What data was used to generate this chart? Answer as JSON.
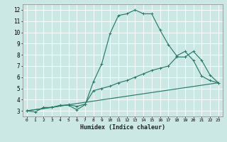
{
  "xlabel": "Humidex (Indice chaleur)",
  "ylabel": "",
  "bg_color": "#cce8e4",
  "grid_color": "#b8d8d4",
  "line_color": "#2a7a6a",
  "xlim": [
    -0.5,
    23.5
  ],
  "ylim": [
    2.5,
    12.5
  ],
  "xtick_labels": [
    "0",
    "1",
    "2",
    "3",
    "4",
    "5",
    "6",
    "7",
    "8",
    "9",
    "10",
    "11",
    "12",
    "13",
    "14",
    "15",
    "16",
    "17",
    "18",
    "19",
    "20",
    "21",
    "22",
    "23"
  ],
  "ytick_labels": [
    "3",
    "4",
    "5",
    "6",
    "7",
    "8",
    "9",
    "10",
    "11",
    "12"
  ],
  "line1_x": [
    0,
    1,
    2,
    3,
    4,
    5,
    6,
    7,
    8,
    9,
    10,
    11,
    12,
    13,
    14,
    15,
    16,
    17,
    18,
    19,
    20,
    21,
    22,
    23
  ],
  "line1_y": [
    3.0,
    2.9,
    3.3,
    3.3,
    3.5,
    3.5,
    3.1,
    3.55,
    5.6,
    7.2,
    9.9,
    11.5,
    11.65,
    12.0,
    11.65,
    11.65,
    10.2,
    8.9,
    7.9,
    8.3,
    7.5,
    6.1,
    5.7,
    5.5
  ],
  "line2_x": [
    0,
    23
  ],
  "line2_y": [
    3.0,
    5.5
  ],
  "line3_x": [
    0,
    3,
    5,
    6,
    7,
    8,
    9,
    10,
    11,
    12,
    13,
    14,
    15,
    16,
    17,
    18,
    19,
    20,
    21,
    22,
    23
  ],
  "line3_y": [
    3.0,
    3.3,
    3.55,
    3.4,
    3.6,
    4.8,
    5.0,
    5.2,
    5.5,
    5.7,
    6.0,
    6.3,
    6.6,
    6.8,
    7.0,
    7.8,
    7.8,
    8.3,
    7.5,
    6.2,
    5.5
  ]
}
